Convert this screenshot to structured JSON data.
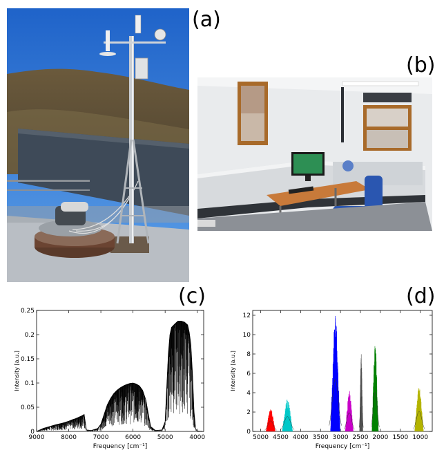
{
  "labels": {
    "a": "(a)",
    "b": "(b)",
    "c": "(c)",
    "d": "(d)"
  },
  "chart_data": [
    {
      "type": "line",
      "panel": "(c)",
      "xlabel": "Frequency [cm⁻¹]",
      "ylabel": "Intensity [a.u.]",
      "xlim": [
        9000,
        3800
      ],
      "ylim": [
        0,
        0.25
      ],
      "x_reversed": true,
      "xticks": [
        "9000",
        "8000",
        "7000",
        "6000",
        "5000",
        "4000"
      ],
      "yticks": [
        "0",
        "0.05",
        "0.1",
        "0.15",
        "0.2",
        "0.25"
      ],
      "series_color": "#000000",
      "envelope": [
        [
          9000,
          0.0
        ],
        [
          8800,
          0.006
        ],
        [
          8600,
          0.01
        ],
        [
          8400,
          0.014
        ],
        [
          8200,
          0.017
        ],
        [
          8000,
          0.021
        ],
        [
          7900,
          0.024
        ],
        [
          7800,
          0.026
        ],
        [
          7700,
          0.029
        ],
        [
          7600,
          0.032
        ],
        [
          7520,
          0.035
        ],
        [
          7450,
          0.003
        ],
        [
          7300,
          0.002
        ],
        [
          7100,
          0.006
        ],
        [
          7000,
          0.015
        ],
        [
          6900,
          0.035
        ],
        [
          6800,
          0.055
        ],
        [
          6700,
          0.068
        ],
        [
          6600,
          0.078
        ],
        [
          6500,
          0.085
        ],
        [
          6400,
          0.09
        ],
        [
          6300,
          0.094
        ],
        [
          6200,
          0.097
        ],
        [
          6100,
          0.099
        ],
        [
          6000,
          0.1
        ],
        [
          5900,
          0.098
        ],
        [
          5800,
          0.094
        ],
        [
          5700,
          0.085
        ],
        [
          5600,
          0.065
        ],
        [
          5520,
          0.035
        ],
        [
          5450,
          0.01
        ],
        [
          5300,
          0.002
        ],
        [
          5100,
          0.003
        ],
        [
          5000,
          0.02
        ],
        [
          4950,
          0.09
        ],
        [
          4900,
          0.16
        ],
        [
          4850,
          0.2
        ],
        [
          4800,
          0.215
        ],
        [
          4700,
          0.222
        ],
        [
          4600,
          0.228
        ],
        [
          4500,
          0.228
        ],
        [
          4400,
          0.226
        ],
        [
          4300,
          0.22
        ],
        [
          4250,
          0.205
        ],
        [
          4200,
          0.18
        ],
        [
          4150,
          0.12
        ],
        [
          4100,
          0.04
        ],
        [
          4050,
          0.005
        ],
        [
          4000,
          0.001
        ],
        [
          3800,
          0.0
        ]
      ]
    },
    {
      "type": "line",
      "panel": "(d)",
      "xlabel": "Frequency [cm⁻¹]",
      "ylabel": "Intensity [a.u.]",
      "xlim": [
        5200,
        700
      ],
      "ylim": [
        0,
        12.5
      ],
      "x_reversed": true,
      "xticks": [
        "5000",
        "4500",
        "4000",
        "3500",
        "3000",
        "2500",
        "2000",
        "1500",
        "1000"
      ],
      "yticks": [
        "0",
        "2",
        "4",
        "6",
        "8",
        "10",
        "12"
      ],
      "series": [
        {
          "color": "#ff0000",
          "center": 4750,
          "width": 230,
          "peak": 2.4
        },
        {
          "color": "#00c8c8",
          "center": 4330,
          "width": 260,
          "peak": 3.4
        },
        {
          "color": "#0000ff",
          "center": 3130,
          "width": 240,
          "peak": 12.0
        },
        {
          "color": "#c800c8",
          "center": 2780,
          "width": 200,
          "peak": 4.3
        },
        {
          "color": "#505050",
          "center": 2480,
          "width": 80,
          "peak": 8.0
        },
        {
          "color": "#008000",
          "center": 2130,
          "width": 160,
          "peak": 9.0
        },
        {
          "color": "#b4b400",
          "center": 1030,
          "width": 220,
          "peak": 4.6
        }
      ]
    }
  ]
}
